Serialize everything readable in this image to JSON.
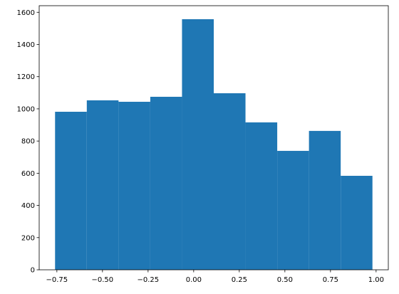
{
  "chart_data": {
    "type": "histogram",
    "color": "#1f77b4",
    "bins": [
      -0.76,
      -0.586,
      -0.412,
      -0.238,
      -0.064,
      0.11,
      0.284,
      0.458,
      0.632,
      0.806,
      0.98
    ],
    "values": [
      982,
      1053,
      1044,
      1075,
      1557,
      1097,
      916,
      739,
      863,
      584
    ],
    "xlim": [
      -0.847,
      1.067
    ],
    "ylim": [
      0,
      1641
    ],
    "xticks": [
      {
        "value": -0.75,
        "label": "−0.75"
      },
      {
        "value": -0.5,
        "label": "−0.50"
      },
      {
        "value": -0.25,
        "label": "−0.25"
      },
      {
        "value": 0,
        "label": "0.00"
      },
      {
        "value": 0.25,
        "label": "0.25"
      },
      {
        "value": 0.5,
        "label": "0.50"
      },
      {
        "value": 0.75,
        "label": "0.75"
      },
      {
        "value": 1,
        "label": "1.00"
      }
    ],
    "yticks": [
      0,
      200,
      400,
      600,
      800,
      1000,
      1200,
      1400,
      1600
    ]
  }
}
